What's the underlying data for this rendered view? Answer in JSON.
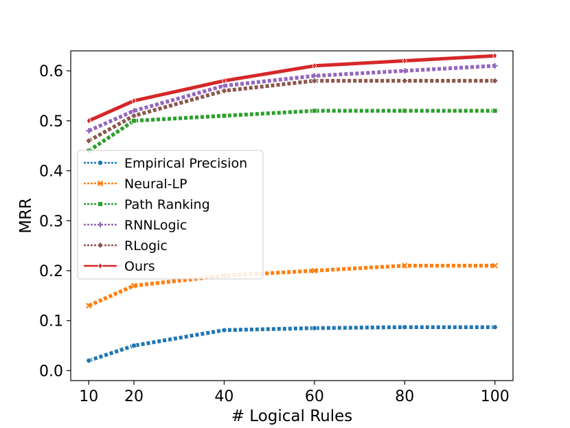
{
  "chart_data": {
    "type": "line",
    "title": "",
    "xlabel": "# Logical Rules",
    "ylabel": "MRR",
    "x": [
      10,
      20,
      40,
      60,
      80,
      100
    ],
    "xticks": [
      "10",
      "20",
      "40",
      "60",
      "80",
      "100"
    ],
    "yticks": [
      "0.0",
      "0.1",
      "0.2",
      "0.3",
      "0.4",
      "0.5",
      "0.6"
    ],
    "xlim": [
      6,
      104
    ],
    "ylim": [
      -0.02,
      0.64
    ],
    "grid": false,
    "legend_position": "center-left",
    "series": [
      {
        "name": "Empirical Precision",
        "color": "#1f77b4",
        "marker": "circle",
        "style": "dotted",
        "values": [
          0.02,
          0.05,
          0.081,
          0.085,
          0.087,
          0.087
        ]
      },
      {
        "name": "Neural-LP",
        "color": "#ff7f0e",
        "marker": "x",
        "style": "dotted",
        "values": [
          0.13,
          0.17,
          0.19,
          0.2,
          0.21,
          0.21
        ]
      },
      {
        "name": "Path Ranking",
        "color": "#2ca02c",
        "marker": "square",
        "style": "dotted",
        "values": [
          0.44,
          0.5,
          0.51,
          0.52,
          0.52,
          0.52
        ]
      },
      {
        "name": "RNNLogic",
        "color": "#9467bd",
        "marker": "plus",
        "style": "dotted",
        "values": [
          0.48,
          0.52,
          0.57,
          0.59,
          0.6,
          0.61
        ]
      },
      {
        "name": "RLogic",
        "color": "#8c564b",
        "marker": "diamond",
        "style": "dotted",
        "values": [
          0.46,
          0.51,
          0.56,
          0.58,
          0.58,
          0.58
        ]
      },
      {
        "name": "Ours",
        "color": "#d62728",
        "marker": "thin-diamond",
        "style": "solid",
        "values": [
          0.5,
          0.54,
          0.58,
          0.61,
          0.62,
          0.63
        ]
      }
    ]
  }
}
